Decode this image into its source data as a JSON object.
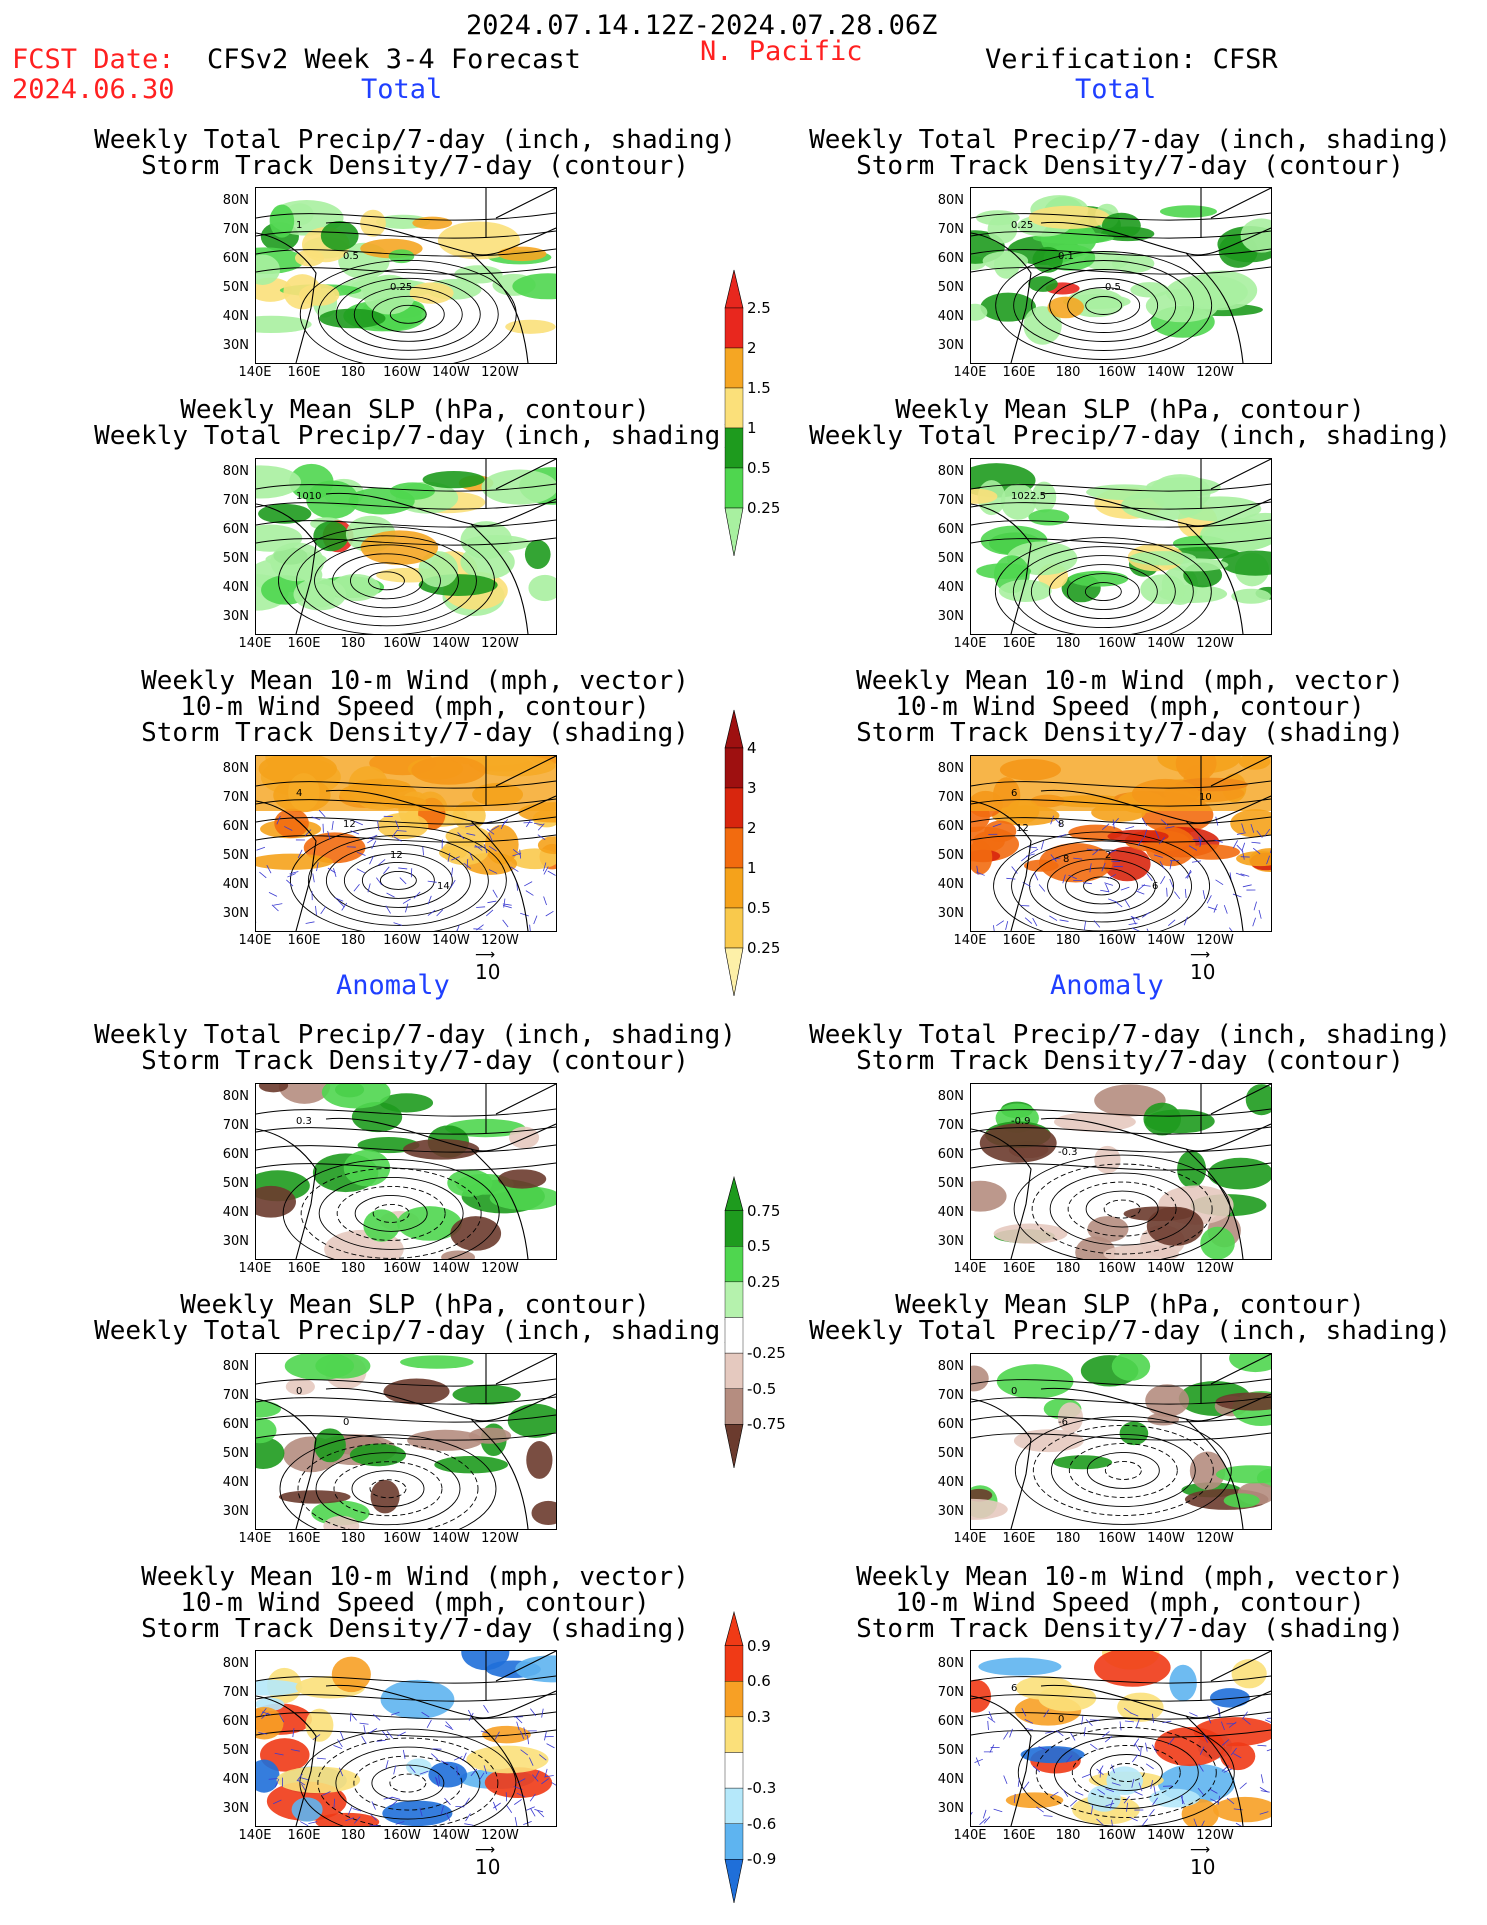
{
  "header": {
    "date_range": "2024.07.14.12Z-2024.07.28.06Z",
    "region": "N. Pacific",
    "fcst_label": "FCST Date:",
    "fcst_date": "2024.06.30",
    "model": "CFSv2 Week 3-4 Forecast",
    "verification": "Verification: CFSR"
  },
  "sections": {
    "total": "Total",
    "anomaly": "Anomaly"
  },
  "titles": {
    "precip_storm": [
      "Weekly Total Precip/7-day (inch, shading)",
      "Storm Track Density/7-day (contour)"
    ],
    "slp_precip": [
      "Weekly Mean SLP (hPa, contour)",
      "Weekly Total Precip/7-day (inch, shading)"
    ],
    "wind": [
      "Weekly Mean 10-m Wind (mph, vector)",
      "10-m Wind Speed (mph, contour)",
      "Storm Track Density/7-day (shading)"
    ]
  },
  "axes": {
    "lat": [
      "80N",
      "70N",
      "60N",
      "50N",
      "40N",
      "30N"
    ],
    "lon": [
      "140E",
      "160E",
      "180",
      "160W",
      "140W",
      "120W"
    ]
  },
  "vector_ref": "10",
  "colorbars": {
    "precip_total": {
      "labels": [
        "2.5",
        "2",
        "1.5",
        "1",
        "0.5",
        "0.25"
      ],
      "colors": [
        "#e8271e",
        "#f5a623",
        "#fbe07a",
        "#1e9b1e",
        "#4fd64f",
        "#a8f0a0"
      ]
    },
    "storm_total": {
      "labels": [
        "4",
        "3",
        "2",
        "1",
        "0.5",
        "0.25"
      ],
      "colors": [
        "#9e1010",
        "#d8260e",
        "#f26b0f",
        "#f5a21b",
        "#f9c94c",
        "#fdf0a8"
      ]
    },
    "precip_anom": {
      "labels": [
        "0.75",
        "0.5",
        "0.25",
        "-0.25",
        "-0.5",
        "-0.75"
      ],
      "colors": [
        "#1e9b1e",
        "#4fd64f",
        "#b5f2ad",
        "#ffffff",
        "#e5c9bf",
        "#b58d80",
        "#6b3b2e"
      ]
    },
    "storm_anom": {
      "labels": [
        "0.9",
        "0.6",
        "0.3",
        "-0.3",
        "-0.6",
        "-0.9"
      ],
      "colors": [
        "#f03a16",
        "#f7a025",
        "#fbe07a",
        "#ffffff",
        "#b5e8fa",
        "#5eb4f0",
        "#1f6fd9"
      ]
    }
  },
  "contour_labels": {
    "p1": [
      "1",
      "0.5",
      "0.25"
    ],
    "p2": [
      "0.25",
      "0.1",
      "0.5"
    ],
    "p3": [
      "1010"
    ],
    "p4": [
      "1022.5"
    ],
    "p5": [
      "4",
      "12",
      "12",
      "14"
    ],
    "p6": [
      "6",
      "8",
      "2",
      "6",
      "10",
      "12",
      "8"
    ],
    "p7": [
      "0.3"
    ],
    "p8": [
      "-0.9",
      "-0.3"
    ],
    "p9": [
      "0",
      "0"
    ],
    "p10": [
      "0",
      "-6"
    ],
    "p12": [
      "6",
      "0"
    ]
  }
}
